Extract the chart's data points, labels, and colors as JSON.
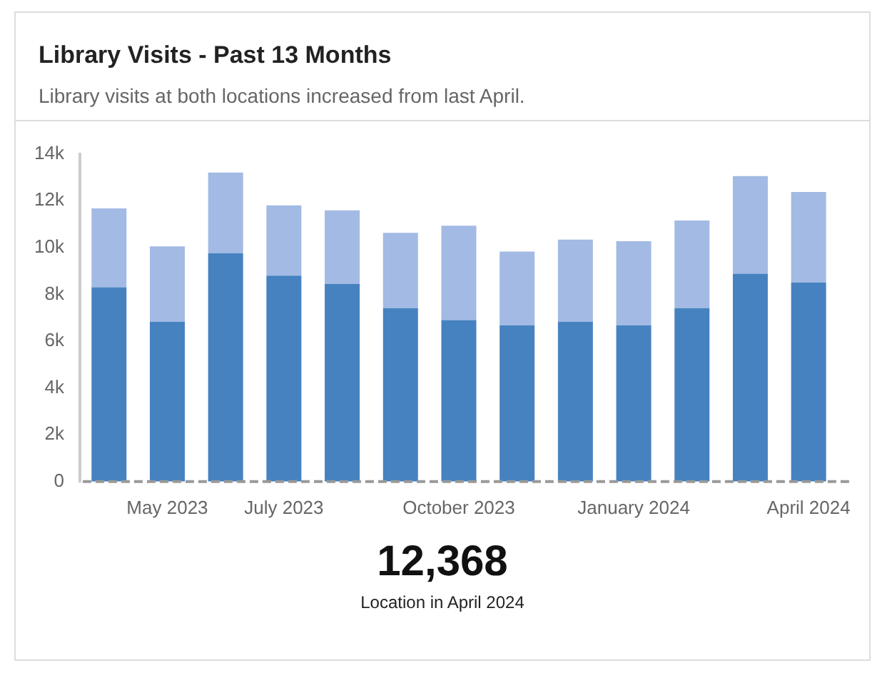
{
  "chart_data": {
    "type": "bar",
    "title": "Library Visits - Past 13 Months",
    "subtitle": "Library visits at both locations increased from last April.",
    "categories": [
      null,
      "May 2023",
      null,
      "July 2023",
      null,
      null,
      "October 2023",
      null,
      null,
      "January 2024",
      null,
      null,
      "April 2024"
    ],
    "stacked": true,
    "series": [
      {
        "color": "#4682c0",
        "values": [
          8300,
          6830,
          9760,
          8800,
          8440,
          7410,
          6900,
          6680,
          6830,
          6680,
          7410,
          8880,
          8500
        ]
      },
      {
        "color": "#a2bae4",
        "values": [
          3370,
          3220,
          3440,
          3000,
          3150,
          3220,
          4030,
          3150,
          3510,
          3590,
          3740,
          4170,
          3870
        ]
      }
    ],
    "ylim": [
      0,
      14000
    ],
    "yticks": [
      0,
      {
        "value": 2000,
        "label": "2k"
      },
      {
        "value": 4000,
        "label": "4k"
      },
      {
        "value": 6000,
        "label": "6k"
      },
      {
        "value": 8000,
        "label": "8k"
      },
      {
        "value": 10000,
        "label": "10k"
      },
      {
        "value": 12000,
        "label": "12k"
      },
      {
        "value": 14000,
        "label": "14k"
      }
    ],
    "grid": false,
    "legend": false,
    "annotations": [
      "12,368",
      "Location in April 2024"
    ]
  }
}
